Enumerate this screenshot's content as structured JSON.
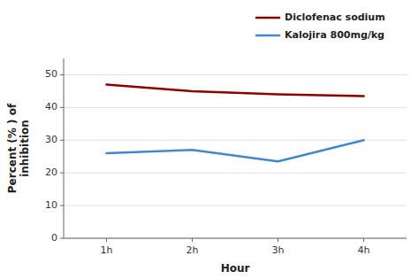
{
  "chart_data": {
    "type": "line",
    "categories": [
      "1h",
      "2h",
      "3h",
      "4h"
    ],
    "series": [
      {
        "name": "Diclofenac sodium",
        "color": "#8b0000",
        "values": [
          47.0,
          45.0,
          44.0,
          43.5
        ]
      },
      {
        "name": "Kalojira 800mg/kg",
        "color": "#4488cc",
        "values": [
          26.0,
          27.0,
          23.5,
          30.0
        ]
      }
    ],
    "xlabel": "Hour",
    "ylabel": "Percent (% ) of\ninhibition",
    "ylim": [
      0,
      55
    ],
    "yticks": [
      0,
      10,
      20,
      30,
      40,
      50
    ],
    "grid": true,
    "legend": "upper right"
  }
}
